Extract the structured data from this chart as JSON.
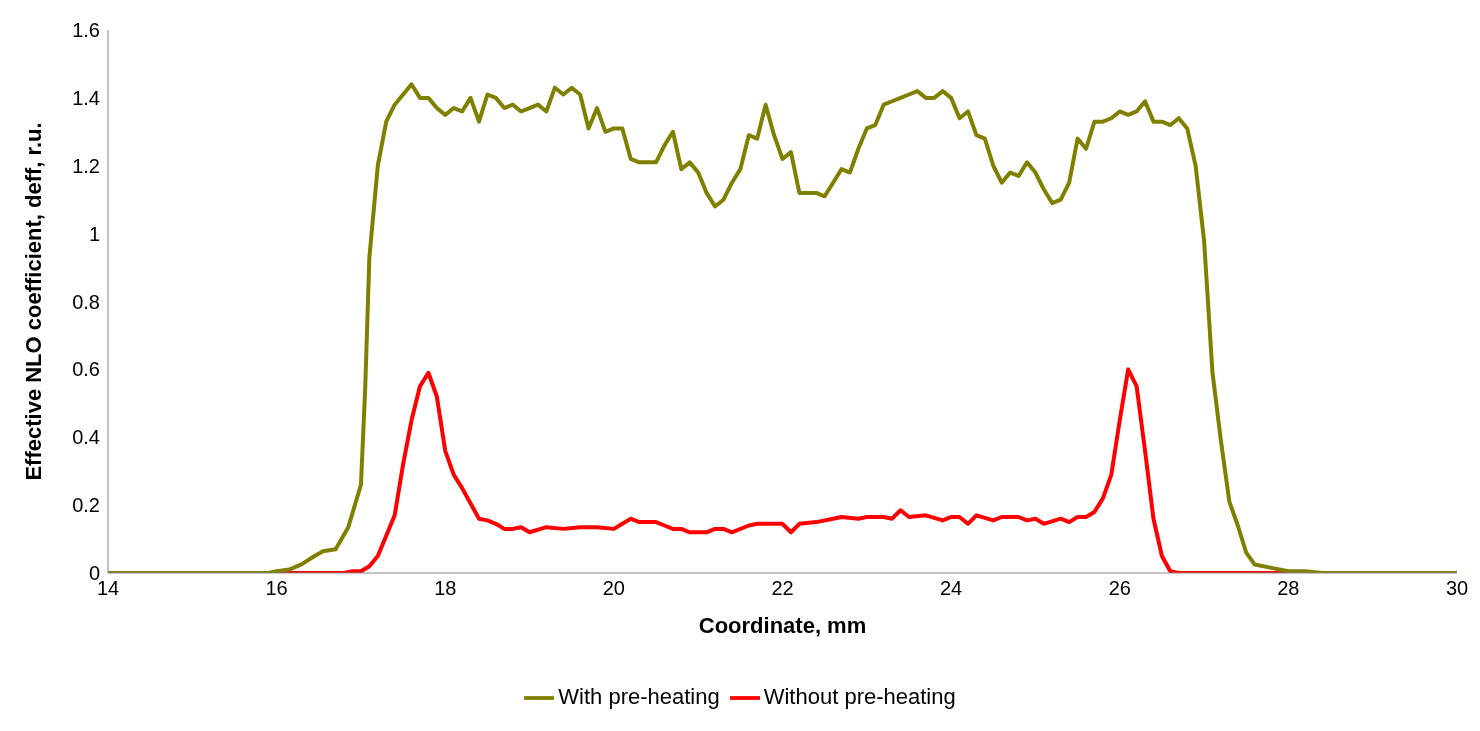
{
  "chart_data": {
    "type": "line",
    "xlabel": "Coordinate, mm",
    "ylabel": "Effective NLO coefficient, deff, r.u.",
    "xlim": [
      14,
      30
    ],
    "xticks": [
      14,
      16,
      18,
      20,
      22,
      24,
      26,
      28,
      30
    ],
    "ylim": [
      0,
      1.6
    ],
    "yticks": [
      0,
      0.2,
      0.4,
      0.6,
      0.8,
      1,
      1.2,
      1.4,
      1.6
    ],
    "grid": false,
    "legend": "bottom",
    "marker": "none",
    "line_style": "solid",
    "series": [
      {
        "name": "Without pre-heating",
        "color": "#ff0000",
        "x": [
          14,
          16.8,
          16.9,
          17,
          17.1,
          17.2,
          17.3,
          17.4,
          17.5,
          17.6,
          17.7,
          17.8,
          17.9,
          18,
          18.1,
          18.2,
          18.4,
          18.5,
          18.6,
          18.7,
          18.8,
          18.9,
          19,
          19.2,
          19.4,
          19.6,
          19.8,
          20,
          20.2,
          20.3,
          20.5,
          20.6,
          20.7,
          20.8,
          20.9,
          21.1,
          21.2,
          21.3,
          21.4,
          21.6,
          21.7,
          21.9,
          22,
          22.1,
          22.2,
          22.4,
          22.6,
          22.7,
          22.9,
          23,
          23.2,
          23.3,
          23.4,
          23.5,
          23.7,
          23.9,
          24,
          24.1,
          24.2,
          24.3,
          24.5,
          24.6,
          24.8,
          24.9,
          25,
          25.1,
          25.3,
          25.4,
          25.5,
          25.6,
          25.7,
          25.8,
          25.9,
          26,
          26.1,
          26.2,
          26.3,
          26.4,
          26.5,
          26.6,
          26.7,
          30
        ],
        "values": [
          0,
          0,
          0.005,
          0.005,
          0.02,
          0.05,
          0.11,
          0.17,
          0.32,
          0.45,
          0.55,
          0.59,
          0.52,
          0.36,
          0.29,
          0.25,
          0.16,
          0.155,
          0.145,
          0.13,
          0.13,
          0.135,
          0.12,
          0.135,
          0.13,
          0.135,
          0.135,
          0.13,
          0.16,
          0.15,
          0.15,
          0.14,
          0.13,
          0.13,
          0.12,
          0.12,
          0.13,
          0.13,
          0.12,
          0.14,
          0.145,
          0.145,
          0.145,
          0.12,
          0.145,
          0.15,
          0.16,
          0.165,
          0.16,
          0.165,
          0.165,
          0.16,
          0.185,
          0.165,
          0.17,
          0.155,
          0.165,
          0.165,
          0.145,
          0.17,
          0.155,
          0.165,
          0.165,
          0.155,
          0.16,
          0.145,
          0.16,
          0.15,
          0.165,
          0.165,
          0.18,
          0.22,
          0.29,
          0.45,
          0.6,
          0.55,
          0.36,
          0.16,
          0.05,
          0.005,
          0,
          0
        ]
      },
      {
        "name": "With pre-heating",
        "color": "#808000",
        "x": [
          14,
          15.9,
          16,
          16.15,
          16.3,
          16.45,
          16.55,
          16.7,
          16.85,
          17,
          17.05,
          17.1,
          17.2,
          17.3,
          17.4,
          17.5,
          17.6,
          17.7,
          17.8,
          17.9,
          18,
          18.1,
          18.2,
          18.3,
          18.4,
          18.5,
          18.6,
          18.7,
          18.8,
          18.9,
          19,
          19.1,
          19.2,
          19.3,
          19.4,
          19.5,
          19.6,
          19.7,
          19.8,
          19.9,
          20,
          20.1,
          20.2,
          20.3,
          20.4,
          20.5,
          20.6,
          20.7,
          20.8,
          20.9,
          21,
          21.1,
          21.2,
          21.3,
          21.4,
          21.5,
          21.6,
          21.7,
          21.8,
          21.9,
          22,
          22.1,
          22.2,
          22.3,
          22.4,
          22.5,
          22.6,
          22.7,
          22.8,
          22.9,
          23,
          23.1,
          23.2,
          23.3,
          23.4,
          23.5,
          23.6,
          23.7,
          23.8,
          23.9,
          24,
          24.1,
          24.2,
          24.3,
          24.4,
          24.5,
          24.6,
          24.7,
          24.8,
          24.9,
          25,
          25.1,
          25.2,
          25.3,
          25.4,
          25.5,
          25.6,
          25.7,
          25.8,
          25.9,
          26,
          26.1,
          26.2,
          26.3,
          26.4,
          26.5,
          26.6,
          26.7,
          26.8,
          26.9,
          27,
          27.1,
          27.2,
          27.3,
          27.4,
          27.5,
          27.6,
          27.8,
          28,
          28.2,
          28.4,
          30
        ],
        "values": [
          0,
          0,
          0.005,
          0.01,
          0.026,
          0.05,
          0.064,
          0.07,
          0.135,
          0.26,
          0.54,
          0.93,
          1.2,
          1.33,
          1.38,
          1.41,
          1.44,
          1.4,
          1.4,
          1.37,
          1.35,
          1.37,
          1.36,
          1.4,
          1.33,
          1.41,
          1.4,
          1.37,
          1.38,
          1.36,
          1.37,
          1.38,
          1.36,
          1.43,
          1.41,
          1.43,
          1.41,
          1.31,
          1.37,
          1.3,
          1.31,
          1.31,
          1.22,
          1.21,
          1.21,
          1.21,
          1.26,
          1.3,
          1.19,
          1.21,
          1.18,
          1.12,
          1.08,
          1.1,
          1.15,
          1.19,
          1.29,
          1.28,
          1.38,
          1.29,
          1.22,
          1.24,
          1.12,
          1.12,
          1.12,
          1.11,
          1.15,
          1.19,
          1.18,
          1.25,
          1.31,
          1.32,
          1.38,
          1.39,
          1.4,
          1.41,
          1.42,
          1.4,
          1.4,
          1.42,
          1.4,
          1.34,
          1.36,
          1.29,
          1.28,
          1.2,
          1.15,
          1.18,
          1.17,
          1.21,
          1.18,
          1.13,
          1.09,
          1.1,
          1.15,
          1.28,
          1.25,
          1.33,
          1.33,
          1.34,
          1.36,
          1.35,
          1.36,
          1.39,
          1.33,
          1.33,
          1.32,
          1.34,
          1.31,
          1.2,
          0.98,
          0.59,
          0.39,
          0.21,
          0.14,
          0.06,
          0.025,
          0.015,
          0.005,
          0.005,
          0,
          0
        ]
      }
    ]
  }
}
